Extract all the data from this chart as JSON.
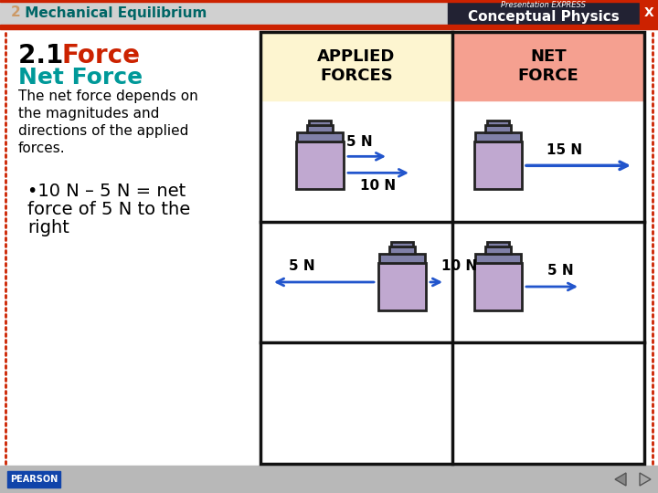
{
  "title_bar_text_2": "2",
  "title_bar_text_main": " Mechanical Equilibrium",
  "title_bar_bg": "#d0d0d0",
  "title_bar_red_stripe": "#cc2200",
  "title_2_color": "#cc9966",
  "title_main_color": "#006666",
  "top_right_bg": "#222233",
  "top_right_text1": "Presentation EXPRESS",
  "top_right_text2": "Conceptual Physics",
  "slide_bg": "#ffffff",
  "border_color": "#cc2200",
  "heading_21": "2.1 ",
  "heading_force": "Force",
  "heading_force_color": "#cc2200",
  "subheading": "Net Force",
  "subheading_color": "#009999",
  "body_lines": [
    "The net force depends on",
    "the magnitudes and",
    "directions of the applied",
    "forces."
  ],
  "bullet_line1": "•10 N – 5 N = net",
  "bullet_line2": "force of 5 N to the",
  "bullet_line3": "right",
  "table_header_left_bg": "#fdf5d0",
  "table_header_right_bg": "#f5a090",
  "table_cell_bg": "#ffffff",
  "table_border": "#111111",
  "col1_header": "APPLIED\nFORCES",
  "col2_header": "NET\nFORCE",
  "arrow_color": "#2255cc",
  "block_body": "#c0a8d0",
  "block_lid": "#8080a8",
  "block_outline": "#222222",
  "bottom_bar_bg": "#b8b8b8",
  "pearson_text": "PEARSON",
  "pearson_box_bg": "#1144aa",
  "pearson_box_color": "#ffffff",
  "nav_arrow_color": "#555555"
}
